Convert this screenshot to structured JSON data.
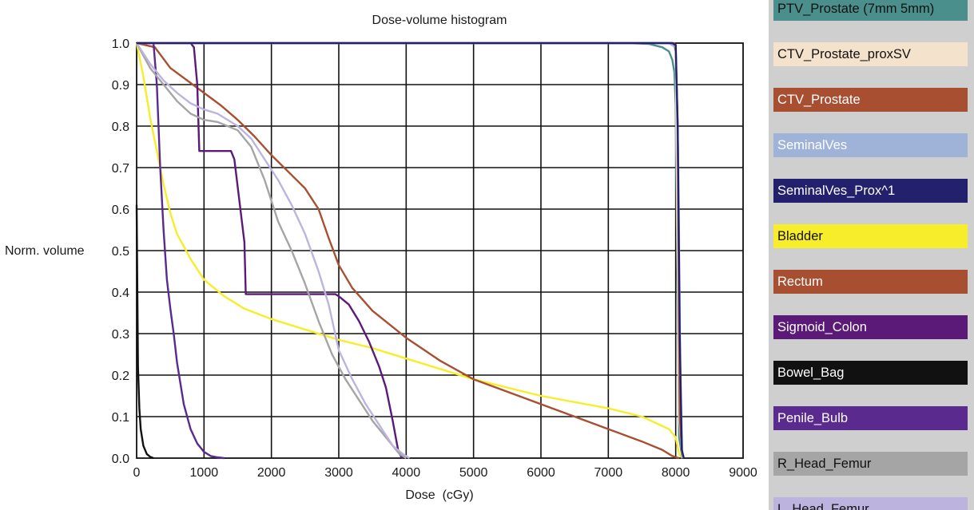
{
  "chart_data": {
    "type": "line",
    "title": "Dose-volume histogram",
    "xlabel": "Dose  (cGy)",
    "ylabel": "Norm. volume",
    "xlim": [
      0,
      9000
    ],
    "ylim": [
      0,
      1
    ],
    "xticks": [
      "0",
      "1000",
      "2000",
      "3000",
      "4000",
      "5000",
      "6000",
      "7000",
      "8000",
      "9000"
    ],
    "yticks": [
      "0.0",
      "0.1",
      "0.2",
      "0.3",
      "0.4",
      "0.5",
      "0.6",
      "0.7",
      "0.8",
      "0.9",
      "1.0"
    ],
    "grid": true,
    "legend_position": "right",
    "series": [
      {
        "name": "PTV_Prostate (7mm 5mm)",
        "color": "#4a8f8c",
        "text_color": "#111111",
        "x": [
          0,
          7000,
          7300,
          7600,
          7800,
          7900,
          7950,
          7980,
          8000,
          8020,
          8050,
          8100
        ],
        "y": [
          1,
          1,
          1,
          0.998,
          0.99,
          0.98,
          0.96,
          0.93,
          0.85,
          0.5,
          0.05,
          0
        ]
      },
      {
        "name": "CTV_Prostate_proxSV",
        "color": "#f4e2cd",
        "text_color": "#111111",
        "x": [
          0,
          7800,
          7950,
          8000,
          8020,
          8050,
          8100
        ],
        "y": [
          1,
          1,
          1,
          0.98,
          0.6,
          0.1,
          0
        ]
      },
      {
        "name": "CTV_Prostate",
        "color": "#a84f32",
        "text_color": "#ffffff",
        "x": [
          0,
          7900,
          7980,
          8000,
          8030,
          8060,
          8100
        ],
        "y": [
          1,
          1,
          1,
          0.98,
          0.8,
          0.1,
          0
        ]
      },
      {
        "name": "SeminalVes",
        "color": "#9fb3d8",
        "text_color": "#ffffff",
        "x": [
          0,
          7900,
          8000,
          8040,
          8070,
          8100
        ],
        "y": [
          1,
          1,
          0.99,
          0.7,
          0.2,
          0
        ]
      },
      {
        "name": "SeminalVes_Prox^1",
        "color": "#23206e",
        "text_color": "#ffffff",
        "x": [
          0,
          7950,
          8000,
          8030,
          8060,
          8090,
          8120
        ],
        "y": [
          1,
          1,
          0.995,
          0.8,
          0.3,
          0.02,
          0
        ]
      },
      {
        "name": "Bladder",
        "color": "#f7ed2a",
        "text_color": "#111111",
        "x": [
          0,
          100,
          200,
          300,
          400,
          500,
          600,
          800,
          1000,
          1300,
          1600,
          2000,
          2500,
          3000,
          3500,
          4000,
          5000,
          6000,
          7000,
          7500,
          7900,
          8000,
          8050,
          8100
        ],
        "y": [
          1,
          0.92,
          0.82,
          0.74,
          0.66,
          0.59,
          0.54,
          0.48,
          0.43,
          0.39,
          0.36,
          0.335,
          0.31,
          0.285,
          0.265,
          0.24,
          0.19,
          0.15,
          0.12,
          0.1,
          0.07,
          0.05,
          0.01,
          0
        ]
      },
      {
        "name": "Rectum",
        "color": "#a84f32",
        "text_color": "#ffffff",
        "x": [
          0,
          270,
          500,
          750,
          1000,
          1250,
          1500,
          1750,
          2000,
          2250,
          2500,
          2700,
          2850,
          3000,
          3200,
          3500,
          4000,
          4500,
          5000,
          5500,
          6000,
          6500,
          7000,
          7500,
          7800,
          7950,
          8050
        ],
        "y": [
          1,
          0.99,
          0.94,
          0.91,
          0.88,
          0.85,
          0.815,
          0.775,
          0.73,
          0.69,
          0.65,
          0.6,
          0.53,
          0.465,
          0.41,
          0.355,
          0.29,
          0.235,
          0.19,
          0.16,
          0.13,
          0.1,
          0.07,
          0.04,
          0.02,
          0.005,
          0
        ]
      },
      {
        "name": "Sigmoid_Colon",
        "color": "#5c1a78",
        "text_color": "#ffffff",
        "x": [
          0,
          800,
          850,
          900,
          930,
          1400,
          1450,
          1600,
          1620,
          2500,
          2950,
          3000,
          3150,
          3300,
          3450,
          3600,
          3700,
          3800,
          3880,
          3920,
          3950
        ],
        "y": [
          1,
          1,
          0.99,
          0.9,
          0.74,
          0.74,
          0.72,
          0.52,
          0.395,
          0.395,
          0.395,
          0.39,
          0.37,
          0.33,
          0.28,
          0.22,
          0.17,
          0.09,
          0.02,
          0.005,
          0
        ]
      },
      {
        "name": "Bowel_Bag",
        "color": "#111111",
        "text_color": "#ffffff",
        "x": [
          0,
          20,
          40,
          60,
          100,
          150,
          200,
          250
        ],
        "y": [
          0.61,
          0.22,
          0.12,
          0.07,
          0.03,
          0.01,
          0.003,
          0
        ]
      },
      {
        "name": "Penile_Bulb",
        "color": "#5a2a8e",
        "text_color": "#ffffff",
        "x": [
          0,
          250,
          300,
          350,
          400,
          450,
          500,
          550,
          600,
          700,
          800,
          900,
          1000,
          1100,
          1200,
          1300
        ],
        "y": [
          1,
          1,
          0.9,
          0.7,
          0.55,
          0.43,
          0.36,
          0.3,
          0.23,
          0.13,
          0.07,
          0.035,
          0.015,
          0.005,
          0.002,
          0
        ]
      },
      {
        "name": "R_Head_Femur",
        "color": "#a5a5a5",
        "text_color": "#111111",
        "x": [
          0,
          100,
          200,
          300,
          400,
          600,
          800,
          1000,
          1200,
          1500,
          1700,
          1900,
          2100,
          2300,
          2500,
          2700,
          2900,
          3100,
          3300,
          3500,
          3700,
          3900,
          4000
        ],
        "y": [
          1,
          0.97,
          0.94,
          0.92,
          0.9,
          0.86,
          0.83,
          0.815,
          0.81,
          0.79,
          0.75,
          0.67,
          0.57,
          0.5,
          0.42,
          0.33,
          0.25,
          0.19,
          0.14,
          0.09,
          0.05,
          0.01,
          0
        ]
      },
      {
        "name": "L_Head_Femur",
        "color": "#bcb4de",
        "text_color": "#111111",
        "x": [
          0,
          200,
          400,
          600,
          800,
          1000,
          1200,
          1500,
          1700,
          1900,
          2100,
          2300,
          2500,
          2700,
          2850,
          3000,
          3200,
          3400,
          3600,
          3800,
          3950,
          4050
        ],
        "y": [
          1,
          0.95,
          0.91,
          0.88,
          0.855,
          0.84,
          0.83,
          0.8,
          0.77,
          0.72,
          0.67,
          0.61,
          0.54,
          0.45,
          0.37,
          0.26,
          0.19,
          0.13,
          0.08,
          0.03,
          0.01,
          0
        ]
      }
    ]
  }
}
